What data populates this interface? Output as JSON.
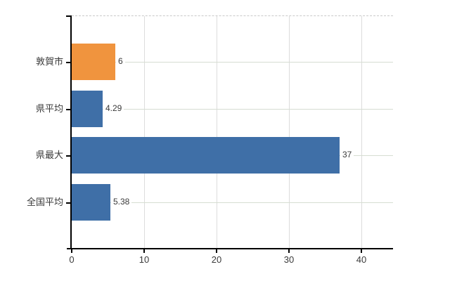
{
  "chart_data": {
    "type": "bar",
    "orientation": "horizontal",
    "categories": [
      "敦賀市",
      "県平均",
      "県最大",
      "全国平均"
    ],
    "values": [
      6,
      4.29,
      37,
      5.38
    ],
    "value_labels": [
      "6",
      "4.29",
      "37",
      "5.38"
    ],
    "bar_colors": [
      "#f0943e",
      "#3f6fa7",
      "#3f6fa7",
      "#3f6fa7"
    ],
    "x_ticks": [
      0,
      10,
      20,
      30,
      40
    ],
    "x_tick_labels": [
      "0",
      "10",
      "20",
      "30",
      "40"
    ],
    "xlim": [
      0,
      44.4
    ],
    "grid": true,
    "legend_position": "none",
    "title": ""
  },
  "colors": {
    "bar_orange": "#f0943e",
    "bar_blue": "#3f6fa7",
    "axis": "#000000",
    "grid_vertical": "#dcdcdc",
    "grid_horizontal": "#d6ddd2",
    "plot_top_border": "#c9c9c9",
    "text": "#3a3a3a"
  }
}
